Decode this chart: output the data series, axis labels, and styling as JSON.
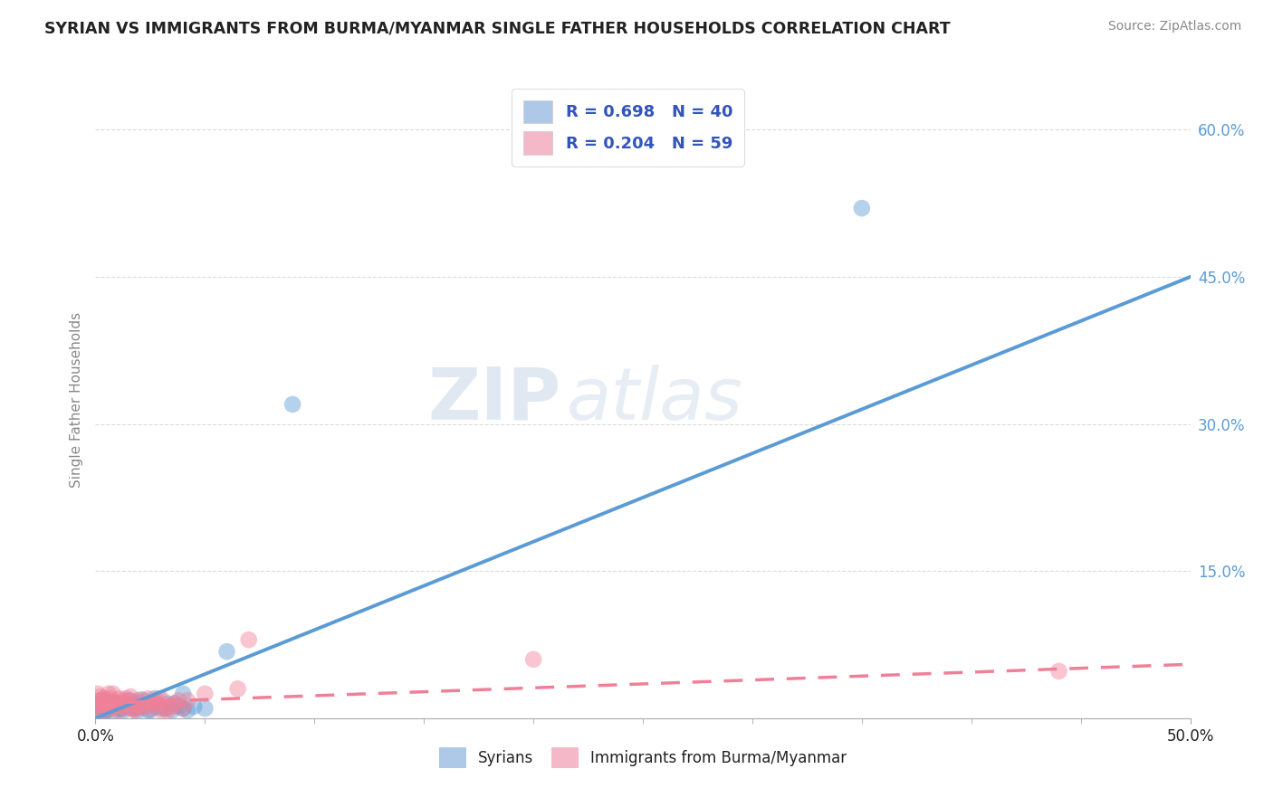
{
  "title": "SYRIAN VS IMMIGRANTS FROM BURMA/MYANMAR SINGLE FATHER HOUSEHOLDS CORRELATION CHART",
  "source": "Source: ZipAtlas.com",
  "ylabel": "Single Father Households",
  "xlim": [
    0.0,
    0.5
  ],
  "ylim": [
    0.0,
    0.65
  ],
  "yticks": [
    0.0,
    0.15,
    0.3,
    0.45,
    0.6
  ],
  "ytick_labels": [
    "",
    "15.0%",
    "30.0%",
    "45.0%",
    "60.0%"
  ],
  "xtick_labels": [
    "0.0%",
    "50.0%"
  ],
  "xticks": [
    0.0,
    0.5
  ],
  "legend_items": [
    {
      "label": "R = 0.698   N = 40",
      "color": "#aec8e8"
    },
    {
      "label": "R = 0.204   N = 59",
      "color": "#f4b8c8"
    }
  ],
  "bottom_legend": [
    {
      "label": "Syrians",
      "color": "#aec8e8"
    },
    {
      "label": "Immigrants from Burma/Myanmar",
      "color": "#f4b8c8"
    }
  ],
  "blue_color": "#5b9bd5",
  "pink_color": "#f08098",
  "legend_text_color": "#3355bb",
  "title_color": "#222222",
  "right_tick_color": "#5b9bd5",
  "grid_color": "#cccccc",
  "blue_scatter": {
    "x": [
      0.002,
      0.003,
      0.005,
      0.007,
      0.008,
      0.01,
      0.012,
      0.013,
      0.015,
      0.016,
      0.018,
      0.02,
      0.022,
      0.025,
      0.027,
      0.03,
      0.033,
      0.035,
      0.038,
      0.04,
      0.002,
      0.004,
      0.006,
      0.009,
      0.011,
      0.014,
      0.017,
      0.019,
      0.021,
      0.024,
      0.028,
      0.032,
      0.036,
      0.042,
      0.045,
      0.05,
      0.06,
      0.09,
      0.35,
      0.04
    ],
    "y": [
      0.005,
      0.01,
      0.008,
      0.012,
      0.006,
      0.015,
      0.01,
      0.008,
      0.012,
      0.018,
      0.01,
      0.015,
      0.012,
      0.008,
      0.02,
      0.01,
      0.015,
      0.008,
      0.012,
      0.01,
      0.018,
      0.006,
      0.014,
      0.016,
      0.009,
      0.013,
      0.011,
      0.007,
      0.019,
      0.008,
      0.012,
      0.01,
      0.015,
      0.008,
      0.012,
      0.01,
      0.068,
      0.32,
      0.52,
      0.025
    ]
  },
  "pink_scatter": {
    "x": [
      0.001,
      0.002,
      0.003,
      0.004,
      0.005,
      0.006,
      0.007,
      0.008,
      0.009,
      0.01,
      0.011,
      0.012,
      0.013,
      0.014,
      0.015,
      0.016,
      0.018,
      0.02,
      0.022,
      0.025,
      0.028,
      0.03,
      0.033,
      0.035,
      0.038,
      0.04,
      0.001,
      0.003,
      0.005,
      0.007,
      0.009,
      0.012,
      0.015,
      0.018,
      0.021,
      0.024,
      0.027,
      0.03,
      0.002,
      0.004,
      0.006,
      0.008,
      0.011,
      0.014,
      0.017,
      0.019,
      0.023,
      0.026,
      0.029,
      0.032,
      0.036,
      0.042,
      0.05,
      0.065,
      0.07,
      0.2,
      0.44,
      0.002,
      0.005
    ],
    "y": [
      0.01,
      0.015,
      0.008,
      0.02,
      0.012,
      0.018,
      0.01,
      0.025,
      0.015,
      0.008,
      0.02,
      0.012,
      0.018,
      0.01,
      0.015,
      0.022,
      0.008,
      0.012,
      0.018,
      0.01,
      0.015,
      0.02,
      0.008,
      0.012,
      0.018,
      0.01,
      0.025,
      0.015,
      0.01,
      0.02,
      0.012,
      0.015,
      0.018,
      0.01,
      0.012,
      0.02,
      0.015,
      0.008,
      0.018,
      0.01,
      0.025,
      0.012,
      0.015,
      0.02,
      0.01,
      0.018,
      0.012,
      0.015,
      0.02,
      0.01,
      0.015,
      0.018,
      0.025,
      0.03,
      0.08,
      0.06,
      0.048,
      0.022,
      0.016
    ]
  },
  "blue_line": {
    "x0": 0.0,
    "y0": 0.0,
    "x1": 0.5,
    "y1": 0.45
  },
  "pink_line": {
    "x0": 0.0,
    "y0": 0.015,
    "x1": 0.5,
    "y1": 0.055
  }
}
